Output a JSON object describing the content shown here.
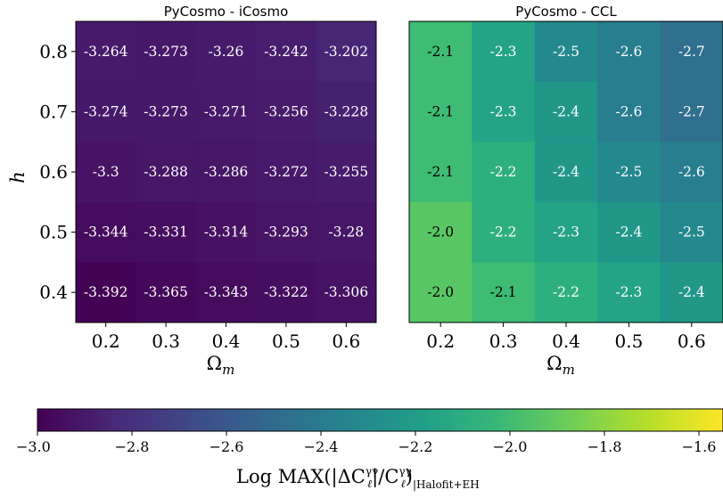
{
  "chart_data": [
    {
      "type": "heatmap",
      "title": "PyCosmo - iCosmo",
      "x_categories": [
        "0.2",
        "0.3",
        "0.4",
        "0.5",
        "0.6"
      ],
      "y_categories": [
        "0.8",
        "0.7",
        "0.6",
        "0.5",
        "0.4"
      ],
      "xlabel": "Ω",
      "xlabel_sub": "m",
      "ylabel": "h",
      "values": [
        [
          -3.264,
          -3.273,
          -3.26,
          -3.242,
          -3.202
        ],
        [
          -3.274,
          -3.273,
          -3.271,
          -3.256,
          -3.228
        ],
        [
          -3.3,
          -3.288,
          -3.286,
          -3.272,
          -3.255
        ],
        [
          -3.344,
          -3.331,
          -3.314,
          -3.293,
          -3.28
        ],
        [
          -3.392,
          -3.365,
          -3.343,
          -3.322,
          -3.306
        ]
      ],
      "value_labels": [
        [
          "-3.264",
          "-3.273",
          "-3.26",
          "-3.242",
          "-3.202"
        ],
        [
          "-3.274",
          "-3.273",
          "-3.271",
          "-3.256",
          "-3.228"
        ],
        [
          "-3.3",
          "-3.288",
          "-3.286",
          "-3.272",
          "-3.255"
        ],
        [
          "-3.344",
          "-3.331",
          "-3.314",
          "-3.293",
          "-3.28"
        ],
        [
          "-3.392",
          "-3.365",
          "-3.343",
          "-3.322",
          "-3.306"
        ]
      ]
    },
    {
      "type": "heatmap",
      "title": "PyCosmo - CCL",
      "x_categories": [
        "0.2",
        "0.3",
        "0.4",
        "0.5",
        "0.6"
      ],
      "y_categories": [
        "0.8",
        "0.7",
        "0.6",
        "0.5",
        "0.4"
      ],
      "xlabel": "Ω",
      "xlabel_sub": "m",
      "ylabel": "",
      "values": [
        [
          -2.1,
          -2.3,
          -2.5,
          -2.6,
          -2.7
        ],
        [
          -2.1,
          -2.3,
          -2.4,
          -2.6,
          -2.7
        ],
        [
          -2.1,
          -2.2,
          -2.4,
          -2.5,
          -2.6
        ],
        [
          -2.0,
          -2.2,
          -2.3,
          -2.4,
          -2.5
        ],
        [
          -2.0,
          -2.1,
          -2.2,
          -2.3,
          -2.4
        ]
      ],
      "value_labels": [
        [
          "-2.1",
          "-2.3",
          "-2.5",
          "-2.6",
          "-2.7"
        ],
        [
          "-2.1",
          "-2.3",
          "-2.4",
          "-2.6",
          "-2.7"
        ],
        [
          "-2.1",
          "-2.2",
          "-2.4",
          "-2.5",
          "-2.6"
        ],
        [
          "-2.0",
          "-2.2",
          "-2.3",
          "-2.4",
          "-2.5"
        ],
        [
          "-2.0",
          "-2.1",
          "-2.2",
          "-2.3",
          "-2.4"
        ]
      ]
    }
  ],
  "colorbar": {
    "colormap": "viridis",
    "range": [
      -3.4,
      -1.5
    ],
    "ticks": [
      -3.0,
      -2.8,
      -2.6,
      -2.4,
      -2.2,
      -2.0,
      -1.8,
      -1.6
    ],
    "tick_labels": [
      "−3.0",
      "−2.8",
      "−2.6",
      "−2.4",
      "−2.2",
      "−2.0",
      "−1.8",
      "−1.6"
    ],
    "label": "Log MAX(|ΔC^γγ_ℓ|/C^γγ_ℓ)|Halofit+EH"
  },
  "viridis_stops": [
    "#440154",
    "#482878",
    "#3e4989",
    "#31688e",
    "#26828e",
    "#1f9e89",
    "#35b779",
    "#6ece58",
    "#b5de2b",
    "#fde725"
  ]
}
